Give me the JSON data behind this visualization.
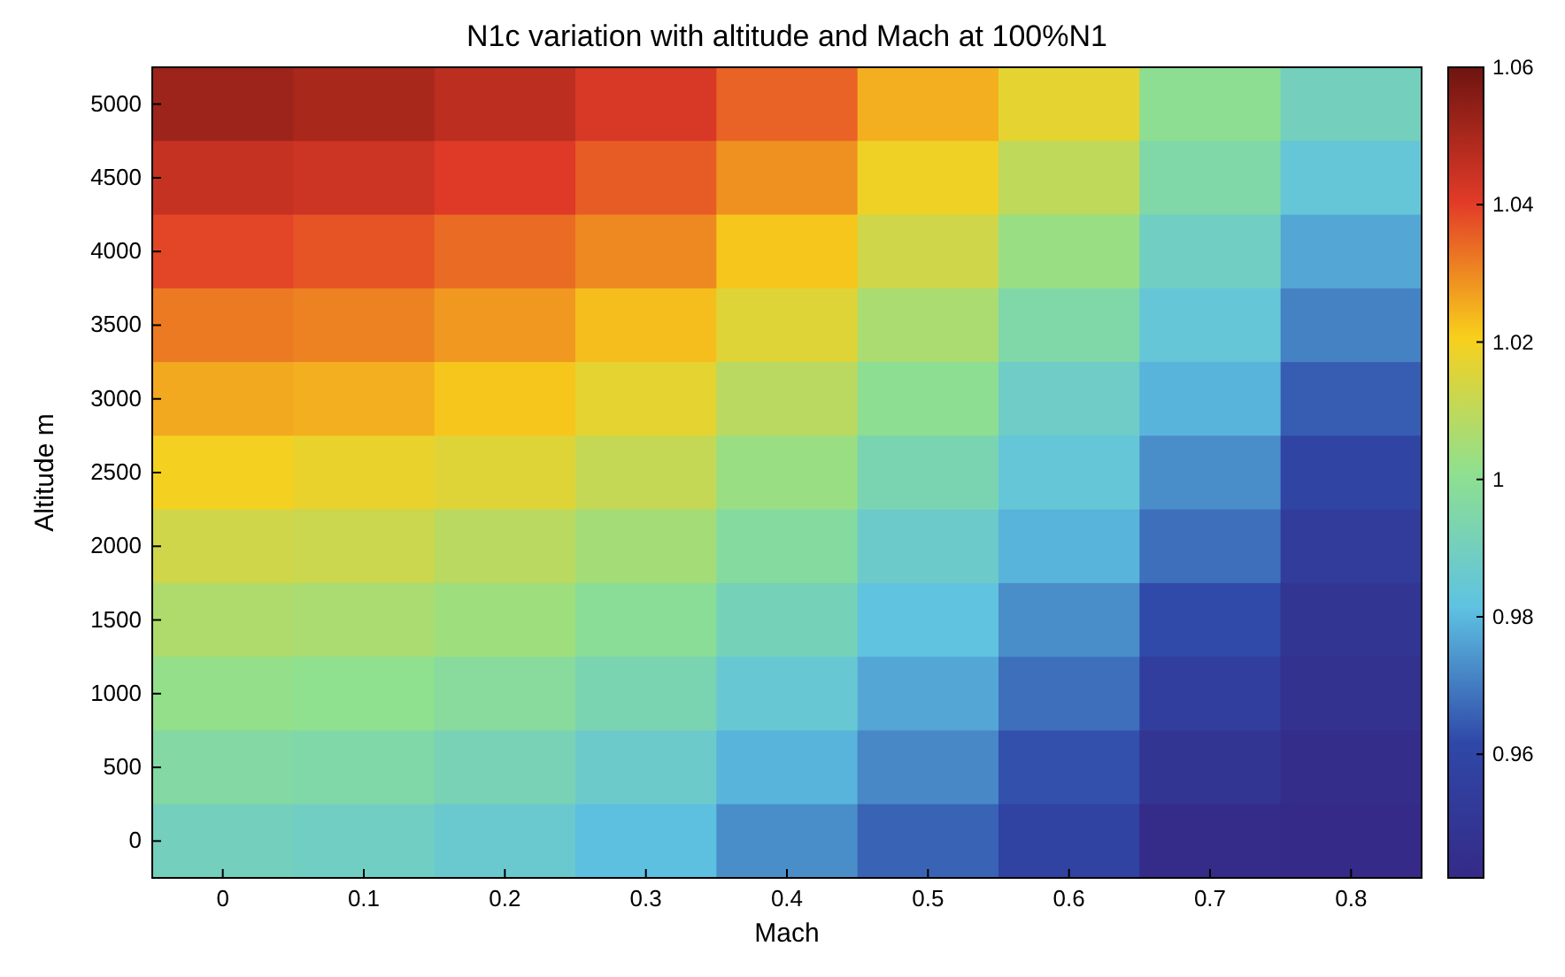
{
  "chart_data": {
    "type": "heatmap",
    "title": "N1c variation with altitude and Mach at 100%N1",
    "xlabel": "Mach",
    "ylabel": "Altitude m",
    "categories": [
      "0",
      "0.1",
      "0.2",
      "0.3",
      "0.4",
      "0.5",
      "0.6",
      "0.7",
      "0.8"
    ],
    "y_categories": [
      "5000",
      "4500",
      "4000",
      "3500",
      "3000",
      "2500",
      "2000",
      "1500",
      "1000",
      "500",
      "0"
    ],
    "cells": [
      [
        1.052,
        1.05,
        1.047,
        1.042,
        1.035,
        1.025,
        1.017,
        1.0,
        0.99
      ],
      [
        1.045,
        1.044,
        1.041,
        1.036,
        1.029,
        1.019,
        1.01,
        0.995,
        0.984
      ],
      [
        1.039,
        1.037,
        1.034,
        1.03,
        1.022,
        1.013,
        1.003,
        0.989,
        0.977
      ],
      [
        1.032,
        1.031,
        1.028,
        1.023,
        1.016,
        1.006,
        0.995,
        0.984,
        0.971
      ],
      [
        1.026,
        1.025,
        1.022,
        1.017,
        1.009,
        1.0,
        0.988,
        0.979,
        0.965
      ],
      [
        1.02,
        1.018,
        1.016,
        1.011,
        1.003,
        0.993,
        0.984,
        0.973,
        0.959
      ],
      [
        1.013,
        1.012,
        1.009,
        1.005,
        0.997,
        0.987,
        0.979,
        0.968,
        0.954
      ],
      [
        1.007,
        1.006,
        1.004,
        0.999,
        0.991,
        0.982,
        0.973,
        0.962,
        0.949
      ],
      [
        1.002,
        1.001,
        0.998,
        0.993,
        0.985,
        0.977,
        0.968,
        0.955,
        0.947
      ],
      [
        0.996,
        0.995,
        0.992,
        0.987,
        0.979,
        0.972,
        0.963,
        0.949,
        0.944
      ],
      [
        0.99,
        0.989,
        0.986,
        0.981,
        0.973,
        0.966,
        0.958,
        0.943,
        0.942
      ]
    ],
    "clim": [
      0.942,
      1.06
    ],
    "cticks": [
      0.96,
      0.98,
      {
        "value": 1,
        "label": "1"
      },
      1.02,
      1.04,
      1.06
    ]
  }
}
